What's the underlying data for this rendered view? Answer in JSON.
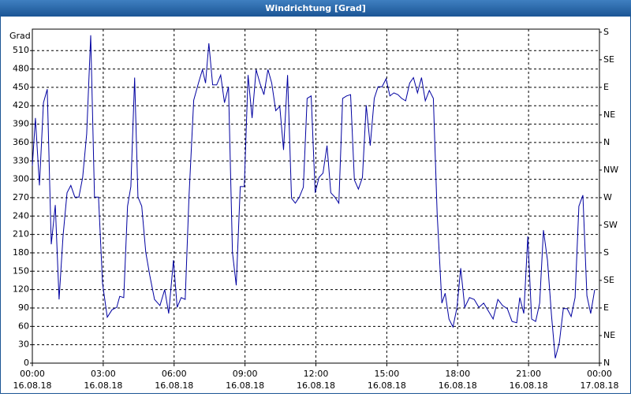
{
  "chart_data": {
    "type": "line",
    "title": "Windrichtung [Grad]",
    "y_label": "Grad",
    "xlim": [
      0,
      24
    ],
    "xticks": [
      {
        "value": 0,
        "label": "00:00"
      },
      {
        "value": 3,
        "label": "03:00"
      },
      {
        "value": 6,
        "label": "06:00"
      },
      {
        "value": 9,
        "label": "09:00"
      },
      {
        "value": 12,
        "label": "12:00"
      },
      {
        "value": 15,
        "label": "15:00"
      },
      {
        "value": 18,
        "label": "18:00"
      },
      {
        "value": 21,
        "label": "21:00"
      },
      {
        "value": 24,
        "label": "00:00"
      }
    ],
    "xtick_dates": [
      "16.08.18",
      "16.08.18",
      "16.08.18",
      "16.08.18",
      "16.08.18",
      "16.08.18",
      "16.08.18",
      "16.08.18",
      "17.08.18"
    ],
    "ylim": [
      0,
      545
    ],
    "yticks": [
      0,
      30,
      60,
      90,
      120,
      150,
      180,
      210,
      240,
      270,
      300,
      330,
      360,
      390,
      420,
      450,
      480,
      510
    ],
    "y2lim": [
      0,
      545
    ],
    "y2ticks": [
      {
        "value": 0,
        "label": "N"
      },
      {
        "value": 45,
        "label": "NE"
      },
      {
        "value": 90,
        "label": "E"
      },
      {
        "value": 135,
        "label": "SE"
      },
      {
        "value": 180,
        "label": "S"
      },
      {
        "value": 225,
        "label": "SW"
      },
      {
        "value": 270,
        "label": "W"
      },
      {
        "value": 315,
        "label": "NW"
      },
      {
        "value": 360,
        "label": "N"
      },
      {
        "value": 405,
        "label": "NE"
      },
      {
        "value": 450,
        "label": "E"
      },
      {
        "value": 495,
        "label": "SE"
      },
      {
        "value": 540,
        "label": "S"
      }
    ],
    "grid": true,
    "x": [
      0,
      0.13,
      0.3,
      0.47,
      0.63,
      0.8,
      0.97,
      1.13,
      1.3,
      1.47,
      1.63,
      1.8,
      1.97,
      2.13,
      2.3,
      2.47,
      2.63,
      2.8,
      2.97,
      3.17,
      3.37,
      3.57,
      3.7,
      3.87,
      4.03,
      4.17,
      4.33,
      4.47,
      4.63,
      4.8,
      4.97,
      5.17,
      5.4,
      5.6,
      5.77,
      5.97,
      6.13,
      6.3,
      6.47,
      6.63,
      6.83,
      7.03,
      7.2,
      7.33,
      7.47,
      7.63,
      7.8,
      7.97,
      8.13,
      8.3,
      8.47,
      8.63,
      8.8,
      8.97,
      9.13,
      9.3,
      9.47,
      9.63,
      9.8,
      9.97,
      10.13,
      10.3,
      10.47,
      10.63,
      10.8,
      10.97,
      11.13,
      11.3,
      11.47,
      11.63,
      11.8,
      11.97,
      12.13,
      12.3,
      12.47,
      12.63,
      12.8,
      12.97,
      13.13,
      13.3,
      13.47,
      13.63,
      13.8,
      13.97,
      14.13,
      14.3,
      14.47,
      14.63,
      14.8,
      14.97,
      15.13,
      15.3,
      15.47,
      15.63,
      15.8,
      15.97,
      16.13,
      16.3,
      16.47,
      16.63,
      16.8,
      16.97,
      17.13,
      17.33,
      17.47,
      17.63,
      17.8,
      17.97,
      18.13,
      18.3,
      18.5,
      18.7,
      18.9,
      19.1,
      19.3,
      19.5,
      19.7,
      19.9,
      20.1,
      20.3,
      20.5,
      20.63,
      20.8,
      20.97,
      21.13,
      21.3,
      21.47,
      21.63,
      21.8,
      21.97,
      22.13,
      22.3,
      22.47,
      22.63,
      22.8,
      22.97,
      23.13,
      23.3,
      23.47,
      23.63,
      23.8
    ],
    "series": [
      {
        "name": "Windrichtung",
        "color": "#0000a0",
        "values": [
          322,
          400,
          290,
          425,
          447,
          194,
          258,
          104,
          207,
          278,
          290,
          271,
          271,
          303,
          374,
          535,
          271,
          271,
          130,
          75,
          87,
          91,
          109,
          107,
          256,
          288,
          466,
          271,
          256,
          181,
          143,
          104,
          94,
          120,
          81,
          168,
          91,
          107,
          104,
          271,
          429,
          457,
          479,
          457,
          522,
          454,
          454,
          470,
          425,
          451,
          181,
          127,
          288,
          288,
          470,
          400,
          479,
          457,
          438,
          479,
          457,
          412,
          419,
          348,
          470,
          269,
          261,
          271,
          287,
          432,
          436,
          278,
          303,
          310,
          355,
          278,
          271,
          261,
          432,
          436,
          438,
          299,
          284,
          303,
          421,
          355,
          432,
          451,
          451,
          464,
          436,
          441,
          438,
          432,
          428,
          457,
          466,
          441,
          466,
          428,
          445,
          432,
          245,
          98,
          114,
          72,
          59,
          91,
          155,
          91,
          107,
          104,
          91,
          98,
          85,
          72,
          104,
          94,
          89,
          68,
          66,
          107,
          81,
          207,
          72,
          68,
          98,
          217,
          168,
          78,
          8,
          33,
          89,
          89,
          76,
          107,
          256,
          274,
          110,
          81,
          120
        ]
      }
    ]
  }
}
